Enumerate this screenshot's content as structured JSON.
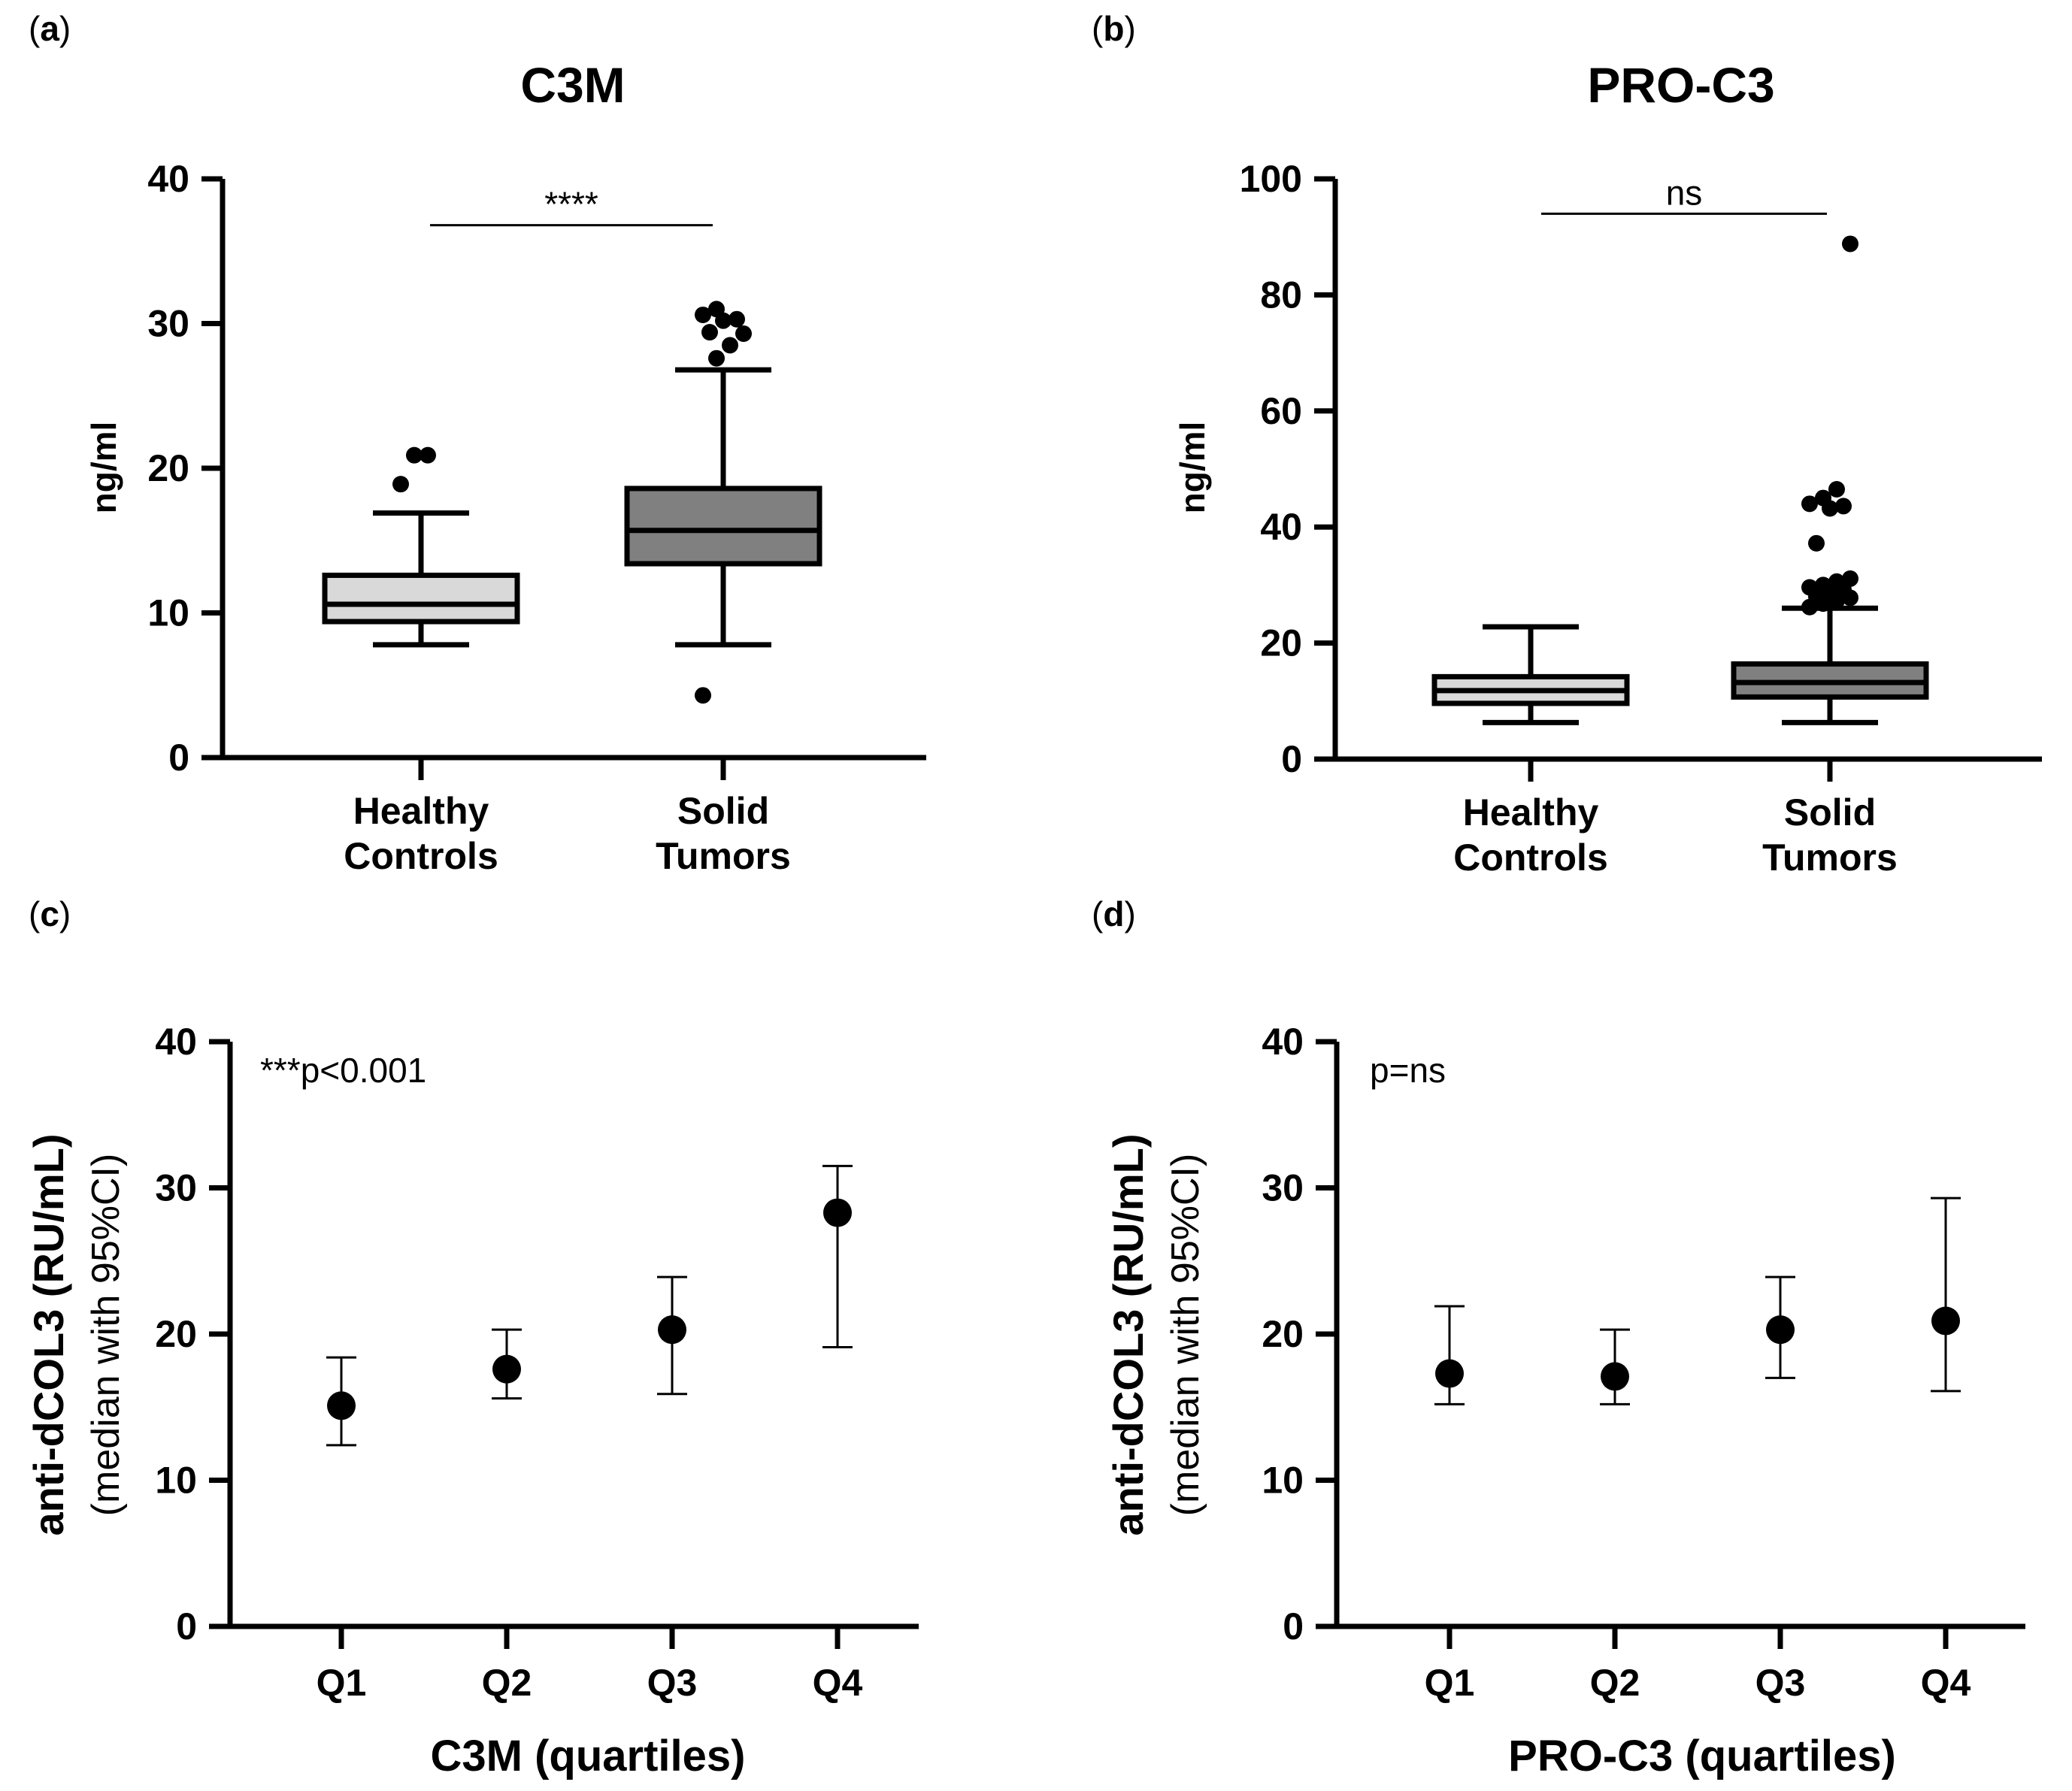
{
  "chart_data": [
    {
      "panel": "a",
      "type": "box",
      "title": "C3M",
      "ylabel": "ng/ml",
      "ylim": [
        0,
        40
      ],
      "yticks": [
        0,
        10,
        20,
        30,
        40
      ],
      "categories": [
        "Healthy Controls",
        "Solid Tumors"
      ],
      "category_lines": [
        [
          "Healthy",
          "Controls"
        ],
        [
          "Solid",
          "Tumors"
        ]
      ],
      "boxes": [
        {
          "name": "Healthy Controls",
          "whisker_low": 7.8,
          "q1": 9.4,
          "median": 10.6,
          "q3": 12.6,
          "whisker_high": 16.9,
          "color": "#d9d9d9",
          "outliers": [
            18.9,
            20.9,
            20.9
          ]
        },
        {
          "name": "Solid Tumors",
          "whisker_low": 7.8,
          "q1": 13.4,
          "median": 15.7,
          "q3": 18.6,
          "whisker_high": 26.8,
          "color": "#808080",
          "outliers": [
            4.3,
            27.6,
            28.5,
            29.3,
            29.4,
            30.2,
            30.3,
            30.6,
            31.0
          ]
        }
      ],
      "comparison": {
        "label": "****",
        "y": 36.8
      }
    },
    {
      "panel": "b",
      "type": "box",
      "title": "PRO-C3",
      "ylabel": "ng/ml",
      "ylim": [
        0,
        100
      ],
      "yticks": [
        0,
        20,
        40,
        60,
        80,
        100
      ],
      "categories": [
        "Healthy Controls",
        "Solid Tumors"
      ],
      "category_lines": [
        [
          "Healthy",
          "Controls"
        ],
        [
          "Solid",
          "Tumors"
        ]
      ],
      "boxes": [
        {
          "name": "Healthy Controls",
          "whisker_low": 6.3,
          "q1": 9.6,
          "median": 11.8,
          "q3": 14.2,
          "whisker_high": 22.8,
          "color": "#d9d9d9",
          "outliers": []
        },
        {
          "name": "Solid Tumors",
          "whisker_low": 6.3,
          "q1": 10.7,
          "median": 13.2,
          "q3": 16.4,
          "whisker_high": 26.0,
          "color": "#808080",
          "outliers": [
            26.2,
            26.8,
            27.3,
            27.8,
            28.0,
            28.3,
            29.2,
            29.6,
            30.0,
            30.6,
            31.1,
            37.2,
            43.2,
            43.6,
            44.0,
            45.0,
            46.5,
            88.8
          ]
        }
      ],
      "comparison": {
        "label": "ns",
        "y": 94.0
      }
    },
    {
      "panel": "c",
      "type": "scatter",
      "ylabel_main": "anti-dCOL3 (RU/mL)",
      "ylabel_sub": "(median with 95%CI)",
      "xlabel": "C3M (quartiles)",
      "ylim": [
        0,
        40
      ],
      "yticks": [
        0,
        10,
        20,
        30,
        40
      ],
      "categories": [
        "Q1",
        "Q2",
        "Q3",
        "Q4"
      ],
      "median": [
        15.1,
        17.6,
        20.3,
        28.3
      ],
      "ci_low": [
        12.4,
        15.6,
        15.9,
        19.1
      ],
      "ci_high": [
        18.4,
        20.3,
        23.9,
        31.5
      ],
      "annotation": "***p<0.001"
    },
    {
      "panel": "d",
      "type": "scatter",
      "ylabel_main": "anti-dCOL3 (RU/mL)",
      "ylabel_sub": "(median with 95%CI)",
      "xlabel": "PRO-C3 (quartiles)",
      "ylim": [
        0,
        40
      ],
      "yticks": [
        0,
        10,
        20,
        30,
        40
      ],
      "categories": [
        "Q1",
        "Q2",
        "Q3",
        "Q4"
      ],
      "median": [
        17.3,
        17.1,
        20.3,
        20.9
      ],
      "ci_low": [
        15.2,
        15.2,
        17.0,
        16.1
      ],
      "ci_high": [
        21.9,
        20.3,
        23.9,
        29.3
      ],
      "annotation": "p=ns"
    }
  ]
}
